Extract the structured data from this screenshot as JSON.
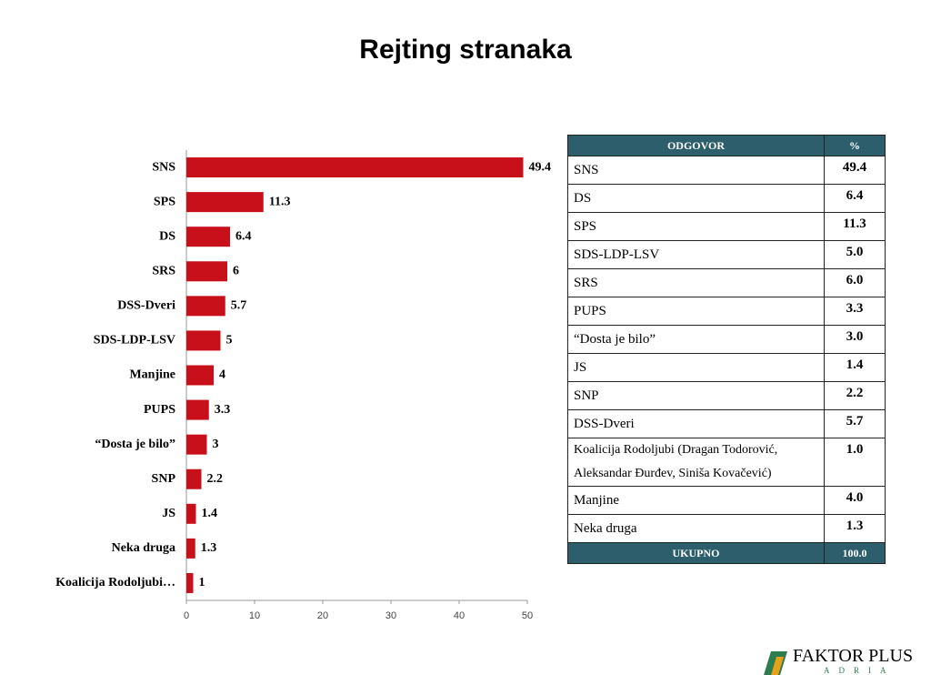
{
  "chart_data": {
    "type": "bar",
    "orientation": "horizontal",
    "title": "Rejting stranaka",
    "categories": [
      "SNS",
      "SPS",
      "DS",
      "SRS",
      "DSS-Dveri",
      "SDS-LDP-LSV",
      "Manjine",
      "PUPS",
      "“Dosta je bilo”",
      "SNP",
      "JS",
      "Neka druga",
      "Koalicija Rodoljubi…"
    ],
    "values": [
      49.4,
      11.3,
      6.4,
      6,
      5.7,
      5,
      4,
      3.3,
      3,
      2.2,
      1.4,
      1.3,
      1
    ],
    "color": "#c8101a",
    "xlim": [
      0,
      50
    ],
    "xticks": [
      0,
      10,
      20,
      30,
      40,
      50
    ],
    "grid": false
  },
  "table": {
    "header": [
      "ODGOVOR",
      "%"
    ],
    "rows": [
      [
        "SNS",
        "49.4"
      ],
      [
        "DS",
        "6.4"
      ],
      [
        "SPS",
        "11.3"
      ],
      [
        "SDS-LDP-LSV",
        "5.0"
      ],
      [
        "SRS",
        "6.0"
      ],
      [
        "PUPS",
        "3.3"
      ],
      [
        "“Dosta je bilo”",
        "3.0"
      ],
      [
        "JS",
        "1.4"
      ],
      [
        "SNP",
        "2.2"
      ],
      [
        "DSS-Dveri",
        "5.7"
      ],
      [
        "Koalicija Rodoljubi (Dragan Todorović, Aleksandar Đurđev, Siniša Kovačević)",
        "1.0"
      ],
      [
        "Manjine",
        "4.0"
      ],
      [
        "Neka druga",
        "1.3"
      ]
    ],
    "footer": [
      "UKUPNO",
      "100.0"
    ]
  },
  "logo": {
    "name": "FAKTOR PLUS",
    "sub": "ADRIA"
  }
}
